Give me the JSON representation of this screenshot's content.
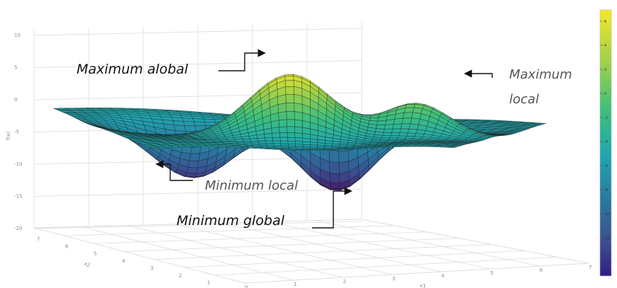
{
  "chart_data": {
    "type": "surface",
    "title": "",
    "axis_labels": {
      "x": "x1",
      "y": "x2",
      "z": "f(x)"
    },
    "x_ticks": [
      "0",
      "1",
      "2",
      "3",
      "4",
      "5",
      "6",
      "7"
    ],
    "y_ticks": [
      "0",
      "1",
      "2",
      "3",
      "4",
      "5",
      "6",
      "7"
    ],
    "z_ticks": [
      "10",
      "5",
      "0",
      "-5",
      "-10",
      "-15",
      "-20"
    ],
    "colorbar_ticks": [
      "6",
      "4",
      "2",
      "0",
      "-2",
      "-4",
      "-6",
      "-8",
      "-10",
      "-12",
      "-14"
    ],
    "colormap": [
      "#440e58",
      "#3b4c8f",
      "#2a78a0",
      "#1fa6b0",
      "#3cbf7d",
      "#9dd04a",
      "#f6e728"
    ],
    "annotations": {
      "max_global": "Maximum alobal",
      "max_local_line1": "Maximum",
      "max_local_line2": "local",
      "min_local": "Minimum local",
      "min_global": "Minimum global"
    }
  }
}
